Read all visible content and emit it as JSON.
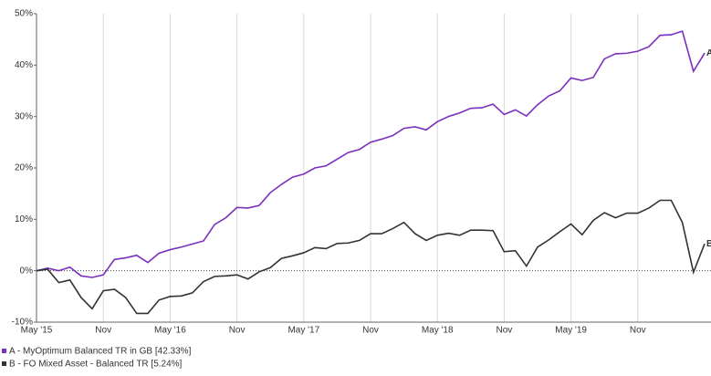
{
  "chart_data": {
    "type": "line",
    "categories": [
      "May '15",
      null,
      null,
      null,
      null,
      null,
      "Nov",
      null,
      null,
      null,
      null,
      null,
      "May '16",
      null,
      null,
      null,
      null,
      null,
      "Nov",
      null,
      null,
      null,
      null,
      null,
      "May '17",
      null,
      null,
      null,
      null,
      null,
      "Nov",
      null,
      null,
      null,
      null,
      null,
      "May '18",
      null,
      null,
      null,
      null,
      null,
      "Nov",
      null,
      null,
      null,
      null,
      null,
      "May '19",
      null,
      null,
      null,
      null,
      null,
      "Nov",
      null,
      null,
      null,
      null,
      null,
      null
    ],
    "series": [
      {
        "name": "A - MyOptimum Balanced TR in GB [42.33%]",
        "marker": "A",
        "color": "#7b2fbf",
        "values": [
          0,
          0.5,
          0,
          0.7,
          -1.0,
          -1.3,
          -0.8,
          2.2,
          2.5,
          3.0,
          1.6,
          3.4,
          4.1,
          4.6,
          5.2,
          5.8,
          9.0,
          10.3,
          12.3,
          12.2,
          12.7,
          15.2,
          16.8,
          18.2,
          18.8,
          20.0,
          20.4,
          21.7,
          23.0,
          23.6,
          25.0,
          25.6,
          26.3,
          27.7,
          28.0,
          27.4,
          29.0,
          30.0,
          30.7,
          31.6,
          31.7,
          32.4,
          30.4,
          31.3,
          30.1,
          32.3,
          34.0,
          35.0,
          37.5,
          37.0,
          37.6,
          41.2,
          42.2,
          42.3,
          42.7,
          43.6,
          45.8,
          45.9,
          46.6,
          38.8,
          42.33
        ]
      },
      {
        "name": "B - FO Mixed Asset - Balanced TR [5.24%]",
        "marker": "B",
        "color": "#333333",
        "values": [
          0,
          0.3,
          -2.3,
          -1.8,
          -5.2,
          -7.4,
          -3.9,
          -3.6,
          -5.2,
          -8.3,
          -8.3,
          -5.7,
          -5.0,
          -4.9,
          -4.3,
          -2.1,
          -1.1,
          -1.0,
          -0.8,
          -1.6,
          -0.2,
          0.6,
          2.4,
          2.9,
          3.5,
          4.5,
          4.3,
          5.3,
          5.4,
          5.9,
          7.2,
          7.2,
          8.2,
          9.4,
          7.2,
          5.9,
          6.9,
          7.3,
          6.9,
          7.9,
          7.9,
          7.8,
          3.7,
          3.9,
          0.9,
          4.6,
          6.0,
          7.6,
          9.1,
          7.0,
          9.8,
          11.3,
          10.3,
          11.2,
          11.2,
          12.2,
          13.7,
          13.7,
          9.4,
          -0.3,
          5.24
        ]
      }
    ],
    "ylim": [
      -10,
      50
    ],
    "yticks": [
      {
        "value": -10,
        "label": "-10%"
      },
      {
        "value": 0,
        "label": "0%"
      },
      {
        "value": 10,
        "label": "10%"
      },
      {
        "value": 20,
        "label": "20%"
      },
      {
        "value": 30,
        "label": "30%"
      },
      {
        "value": 40,
        "label": "40%"
      },
      {
        "value": 50,
        "label": "50%"
      }
    ],
    "grid": true
  }
}
